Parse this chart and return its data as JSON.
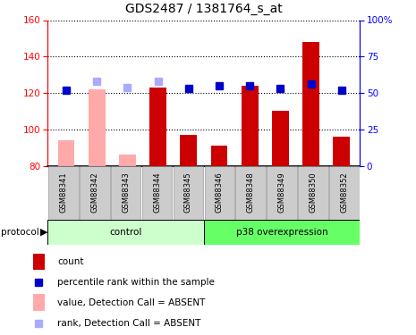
{
  "title": "GDS2487 / 1381764_s_at",
  "samples": [
    "GSM88341",
    "GSM88342",
    "GSM88343",
    "GSM88344",
    "GSM88345",
    "GSM88346",
    "GSM88348",
    "GSM88349",
    "GSM88350",
    "GSM88352"
  ],
  "count_values": [
    94,
    122,
    86,
    123,
    97,
    91,
    124,
    110,
    148,
    96
  ],
  "count_absent": [
    true,
    true,
    true,
    false,
    false,
    false,
    false,
    false,
    false,
    false
  ],
  "rank_values": [
    52,
    58,
    54,
    58,
    53,
    55,
    55,
    53,
    56,
    52
  ],
  "rank_absent": [
    false,
    true,
    true,
    true,
    false,
    false,
    false,
    false,
    false,
    false
  ],
  "ylim_left": [
    80,
    160
  ],
  "ylim_right": [
    0,
    100
  ],
  "yticks_left": [
    80,
    100,
    120,
    140,
    160
  ],
  "yticks_right": [
    0,
    25,
    50,
    75,
    100
  ],
  "ytick_labels_right": [
    "0",
    "25",
    "50",
    "75",
    "100%"
  ],
  "color_count": "#cc0000",
  "color_count_absent": "#ffaaaa",
  "color_rank": "#0000cc",
  "color_rank_absent": "#aaaaff",
  "control_label": "control",
  "p38_label": "p38 overexpression",
  "protocol_label": "protocol",
  "legend_count": "count",
  "legend_rank": "percentile rank within the sample",
  "legend_count_absent": "value, Detection Call = ABSENT",
  "legend_rank_absent": "rank, Detection Call = ABSENT",
  "marker_size": 6,
  "group_bg_control": "#ccffcc",
  "group_bg_p38": "#66ff66",
  "tick_area_bg": "#cccccc",
  "fig_bg": "#ffffff"
}
